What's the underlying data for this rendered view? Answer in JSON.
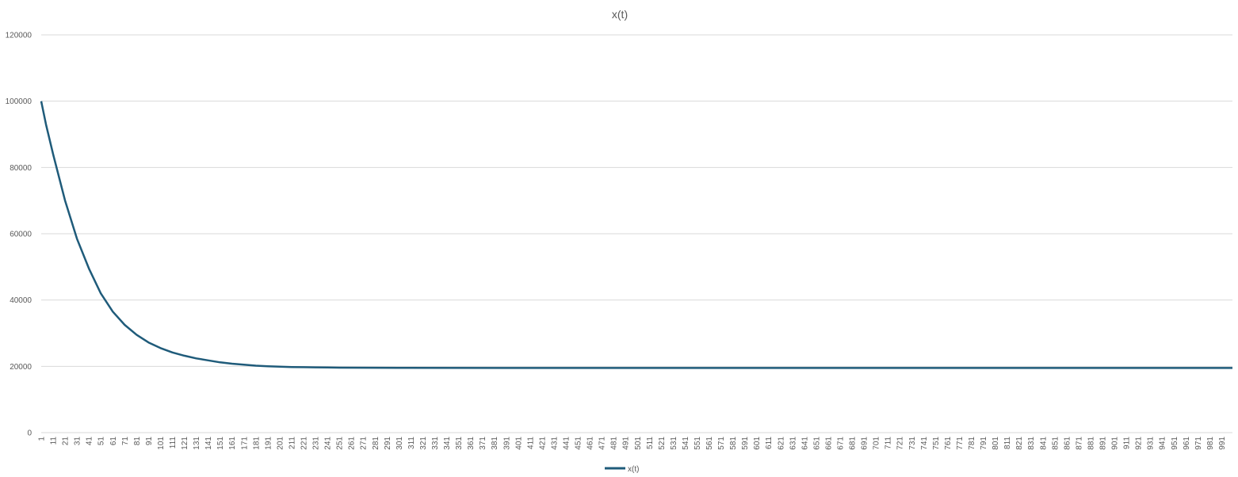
{
  "chart_data": {
    "type": "line",
    "title": "x(t)",
    "xlabel": "",
    "ylabel": "",
    "x_range": [
      1,
      1000
    ],
    "x_tick_start": 1,
    "x_tick_step": 10,
    "ylim": [
      0,
      120000
    ],
    "y_ticks": [
      0,
      20000,
      40000,
      60000,
      80000,
      100000,
      120000
    ],
    "grid": true,
    "legend_position": "bottom",
    "series": [
      {
        "name": "x(t)",
        "color": "#1f5b7a",
        "x": [
          1,
          5,
          11,
          21,
          31,
          41,
          51,
          61,
          71,
          81,
          91,
          101,
          111,
          121,
          131,
          141,
          151,
          161,
          171,
          181,
          191,
          201,
          211,
          221,
          231,
          241,
          251,
          301,
          401,
          501,
          601,
          701,
          801,
          901,
          1000
        ],
        "values": [
          100000,
          93000,
          84000,
          70000,
          58500,
          49500,
          42000,
          36500,
          32500,
          29500,
          27200,
          25500,
          24200,
          23200,
          22400,
          21800,
          21200,
          20800,
          20500,
          20200,
          20000,
          19900,
          19800,
          19750,
          19700,
          19650,
          19600,
          19550,
          19500,
          19500,
          19500,
          19500,
          19500,
          19500,
          19500
        ]
      }
    ]
  }
}
